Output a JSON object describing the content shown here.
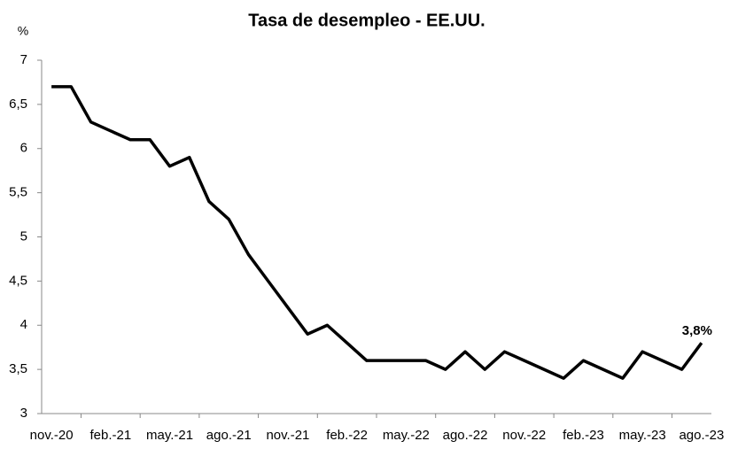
{
  "chart_data": {
    "type": "line",
    "title": "Tasa de desempleo - EE.UU.",
    "y_label": "%",
    "categories": [
      "nov.-20",
      null,
      null,
      "feb.-21",
      null,
      null,
      "may.-21",
      null,
      null,
      "ago.-21",
      null,
      null,
      "nov.-21",
      null,
      null,
      "feb.-22",
      null,
      null,
      "may.-22",
      null,
      null,
      "ago.-22",
      null,
      null,
      "nov.-22",
      null,
      null,
      "feb.-23",
      null,
      null,
      "may.-23",
      null,
      null,
      "ago.-23"
    ],
    "series": [
      {
        "name": "Tasa de desempleo",
        "color": "#000000",
        "values": [
          6.7,
          6.7,
          6.3,
          6.2,
          6.1,
          6.1,
          5.8,
          5.9,
          5.4,
          5.2,
          4.8,
          4.5,
          4.2,
          3.9,
          4.0,
          3.8,
          3.6,
          3.6,
          3.6,
          3.6,
          3.5,
          3.7,
          3.5,
          3.7,
          3.6,
          3.5,
          3.4,
          3.6,
          3.5,
          3.4,
          3.7,
          3.6,
          3.5,
          3.8
        ],
        "value_labels": [
          null,
          null,
          null,
          null,
          null,
          null,
          null,
          null,
          null,
          null,
          null,
          null,
          null,
          null,
          null,
          null,
          null,
          null,
          null,
          null,
          null,
          null,
          null,
          null,
          null,
          null,
          null,
          null,
          null,
          null,
          null,
          null,
          null,
          "3,8%"
        ]
      }
    ],
    "ylim": [
      3,
      7
    ],
    "yticks": [
      3,
      {
        "value": 3.5,
        "label": "3,5"
      },
      4,
      {
        "value": 4.5,
        "label": "4,5"
      },
      5,
      {
        "value": 5.5,
        "label": "5,5"
      },
      6,
      {
        "value": 6.5,
        "label": "6,5"
      },
      7
    ],
    "grid": false
  }
}
